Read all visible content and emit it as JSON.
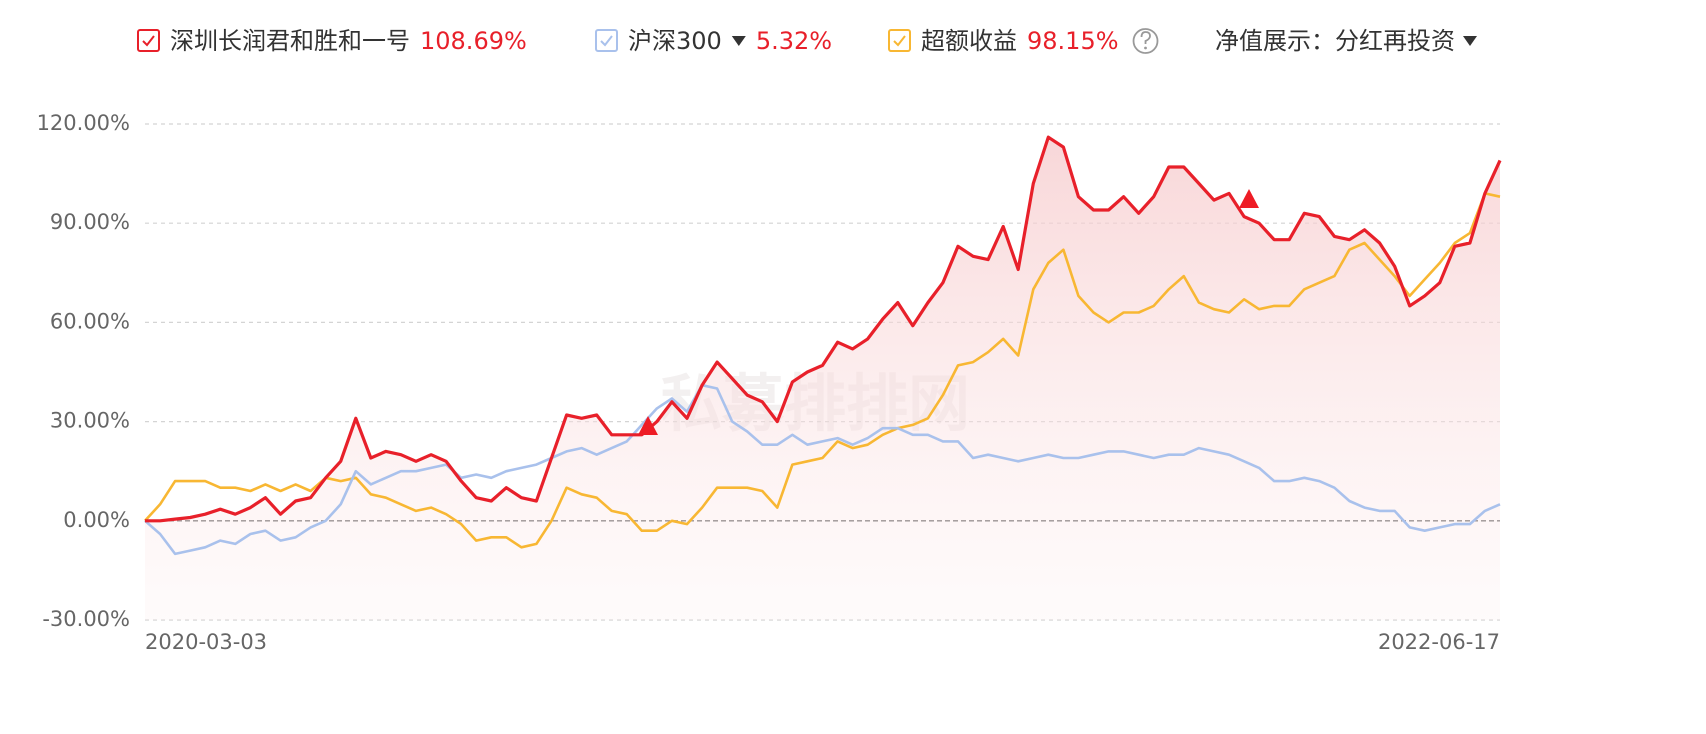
{
  "chart_data": {
    "type": "line",
    "display_mode_label": "净值展示：分红再投资",
    "watermark": "私募排排网",
    "categories": [
      "2020-03-03",
      null,
      null,
      null,
      null,
      null,
      null,
      null,
      null,
      null,
      null,
      null,
      null,
      null,
      null,
      null,
      null,
      null,
      null,
      null,
      null,
      null,
      null,
      null,
      null,
      null,
      null,
      null,
      null,
      null,
      null,
      null,
      null,
      null,
      null,
      null,
      null,
      null,
      null,
      null,
      null,
      null,
      null,
      null,
      null,
      null,
      null,
      null,
      null,
      null,
      null,
      null,
      null,
      null,
      null,
      null,
      null,
      null,
      null,
      null,
      null,
      null,
      null,
      null,
      null,
      null,
      null,
      null,
      null,
      null,
      null,
      null,
      null,
      null,
      null,
      null,
      null,
      null,
      null,
      null,
      null,
      null,
      null,
      null,
      null,
      null,
      null,
      null,
      null,
      null,
      "2022-06-17"
    ],
    "series": [
      {
        "name": "深圳长润君和胜和一号",
        "return_label": "108.69%",
        "color": "#e8202a",
        "values": [
          0,
          0,
          0.5,
          1,
          2,
          3.5,
          2,
          4,
          7,
          2,
          6,
          7,
          13,
          18,
          31,
          19,
          21,
          20,
          18,
          20,
          18,
          12,
          7,
          6,
          10,
          7,
          6,
          19,
          32,
          31,
          32,
          26,
          26,
          26,
          30,
          36,
          31,
          41,
          48,
          43,
          38,
          36,
          30,
          42,
          45,
          47,
          54,
          52,
          55,
          61,
          66,
          59,
          66,
          72,
          83,
          80,
          79,
          89,
          76,
          102,
          116,
          113,
          98,
          94,
          94,
          98,
          93,
          98,
          107,
          107,
          102,
          97,
          99,
          92,
          90,
          85,
          85,
          93,
          92,
          86,
          85,
          88,
          84,
          77,
          65,
          68,
          72,
          83,
          84,
          99,
          109
        ]
      },
      {
        "name": "沪深300",
        "return_label": "5.32%",
        "color": "#a9c1ec",
        "values": [
          0,
          -4,
          -10,
          -9,
          -8,
          -6,
          -7,
          -4,
          -3,
          -6,
          -5,
          -2,
          0,
          5,
          15,
          11,
          13,
          15,
          15,
          16,
          17,
          13,
          14,
          13,
          15,
          16,
          17,
          19,
          21,
          22,
          20,
          22,
          24,
          29,
          34,
          37,
          33,
          41,
          40,
          30,
          27,
          23,
          23,
          26,
          23,
          24,
          25,
          23,
          25,
          28,
          28,
          26,
          26,
          24,
          24,
          19,
          20,
          19,
          18,
          19,
          20,
          19,
          19,
          20,
          21,
          21,
          20,
          19,
          20,
          20,
          22,
          21,
          20,
          18,
          16,
          12,
          12,
          13,
          12,
          10,
          6,
          4,
          3,
          3,
          -2,
          -3,
          -2,
          -1,
          -1,
          3,
          5
        ]
      },
      {
        "name": "超额收益",
        "return_label": "98.15%",
        "color": "#f8b733",
        "values": [
          0,
          5,
          12,
          12,
          12,
          10,
          10,
          9,
          11,
          9,
          11,
          9,
          13,
          12,
          13,
          8,
          7,
          5,
          3,
          4,
          2,
          -1,
          -6,
          -5,
          -5,
          -8,
          -7,
          0,
          10,
          8,
          7,
          3,
          2,
          -3,
          -3,
          0,
          -1,
          4,
          10,
          10,
          10,
          9,
          4,
          17,
          18,
          19,
          24,
          22,
          23,
          26,
          28,
          29,
          31,
          38,
          47,
          48,
          51,
          55,
          50,
          70,
          78,
          82,
          68,
          63,
          60,
          63,
          63,
          65,
          70,
          74,
          66,
          64,
          63,
          67,
          64,
          65,
          65,
          70,
          72,
          74,
          82,
          84,
          79,
          74,
          68,
          73,
          78,
          84,
          87,
          99,
          98
        ]
      }
    ],
    "ylim": [
      -30,
      120
    ],
    "yticks": [
      {
        "value": -30,
        "label": "-30.00%"
      },
      {
        "value": 0,
        "label": "0.00%"
      },
      {
        "value": 30,
        "label": "30.00%"
      },
      {
        "value": 60,
        "label": "60.00%"
      },
      {
        "value": 90,
        "label": "90.00%"
      },
      {
        "value": 120,
        "label": "120.00%"
      }
    ],
    "grid": true
  }
}
